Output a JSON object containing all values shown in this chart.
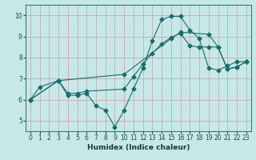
{
  "xlabel": "Humidex (Indice chaleur)",
  "bg_color": "#c8e8e8",
  "line_color": "#1a6b6b",
  "grid_color": "#b0d0d0",
  "xlim": [
    -0.5,
    23.5
  ],
  "ylim": [
    4.5,
    10.5
  ],
  "yticks": [
    5,
    6,
    7,
    8,
    9,
    10
  ],
  "xticks": [
    0,
    1,
    2,
    3,
    4,
    5,
    6,
    7,
    8,
    9,
    10,
    11,
    12,
    13,
    14,
    15,
    16,
    17,
    18,
    19,
    20,
    21,
    22,
    23
  ],
  "line1_x": [
    0,
    1,
    3,
    4,
    5,
    6,
    7,
    8,
    9,
    10,
    11,
    12,
    13,
    14,
    15,
    16,
    17,
    18,
    19,
    20,
    21,
    22,
    23
  ],
  "line1_y": [
    6.0,
    6.6,
    6.9,
    6.2,
    6.2,
    6.3,
    5.7,
    5.5,
    4.7,
    5.5,
    6.5,
    7.5,
    8.8,
    9.8,
    9.95,
    9.95,
    9.3,
    8.9,
    7.5,
    7.4,
    7.6,
    7.8,
    7.8
  ],
  "line2_x": [
    0,
    3,
    4,
    5,
    6,
    10,
    11,
    12,
    13,
    14,
    15,
    16,
    17,
    18,
    19,
    20,
    21,
    22,
    23
  ],
  "line2_y": [
    6.0,
    6.9,
    6.3,
    6.3,
    6.4,
    6.5,
    7.1,
    7.7,
    8.2,
    8.65,
    8.95,
    9.15,
    8.55,
    8.5,
    8.5,
    8.5,
    7.45,
    7.55,
    7.8
  ],
  "line3_x": [
    0,
    3,
    10,
    15,
    16,
    19,
    20,
    21,
    22,
    23
  ],
  "line3_y": [
    6.0,
    6.9,
    7.2,
    8.9,
    9.2,
    9.1,
    8.5,
    7.45,
    7.55,
    7.8
  ]
}
